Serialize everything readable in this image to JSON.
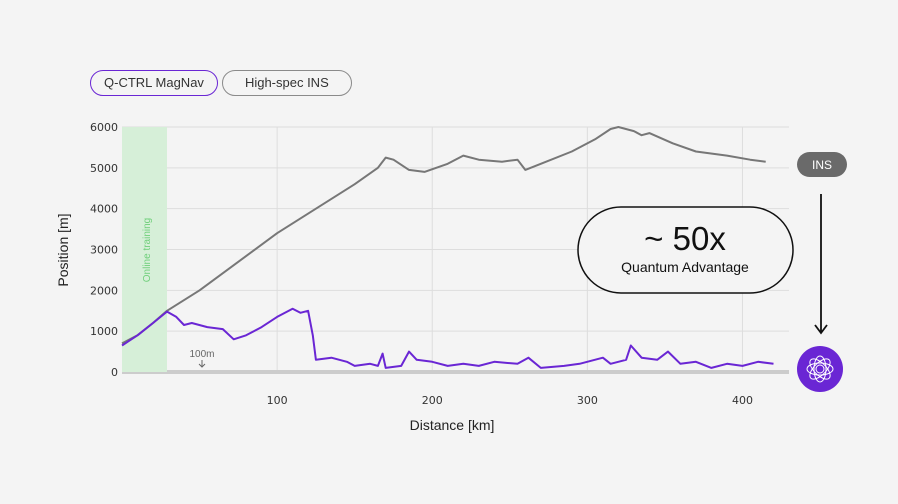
{
  "legend": {
    "items": [
      {
        "label": "Q-CTRL MagNav",
        "active": true
      },
      {
        "label": "High-spec INS",
        "active": false
      }
    ]
  },
  "colors": {
    "magnav": "#6a26d4",
    "ins": "#777777",
    "training_band": "#d6efd8",
    "training_text": "#6fcf7a",
    "ins_tag_bg": "#6a6a6a",
    "grid": "#dddddd",
    "baseline": "#cccccc"
  },
  "annotations": {
    "online_training": "Online training",
    "hundred_m": "100m",
    "advantage_value": "~ 50x",
    "advantage_label": "Quantum Advantage",
    "ins_tag": "INS"
  },
  "chart_data": {
    "type": "line",
    "xlabel": "Distance [km]",
    "ylabel": "Position [m]",
    "xlim": [
      0,
      430
    ],
    "ylim": [
      0,
      6000
    ],
    "xticks": [
      100,
      200,
      300,
      400
    ],
    "yticks": [
      0,
      1000,
      2000,
      3000,
      4000,
      5000,
      6000
    ],
    "grid": true,
    "online_training_range": [
      0,
      29
    ],
    "series": [
      {
        "name": "High-spec INS",
        "points": [
          [
            0,
            700
          ],
          [
            10,
            900
          ],
          [
            20,
            1200
          ],
          [
            29,
            1500
          ],
          [
            50,
            2000
          ],
          [
            75,
            2700
          ],
          [
            100,
            3400
          ],
          [
            125,
            4000
          ],
          [
            150,
            4600
          ],
          [
            165,
            5000
          ],
          [
            170,
            5250
          ],
          [
            175,
            5200
          ],
          [
            185,
            4950
          ],
          [
            195,
            4900
          ],
          [
            210,
            5100
          ],
          [
            220,
            5300
          ],
          [
            230,
            5200
          ],
          [
            245,
            5150
          ],
          [
            255,
            5200
          ],
          [
            260,
            4950
          ],
          [
            270,
            5100
          ],
          [
            290,
            5400
          ],
          [
            305,
            5700
          ],
          [
            315,
            5950
          ],
          [
            320,
            6000
          ],
          [
            330,
            5900
          ],
          [
            335,
            5800
          ],
          [
            340,
            5850
          ],
          [
            355,
            5600
          ],
          [
            370,
            5400
          ],
          [
            390,
            5300
          ],
          [
            405,
            5200
          ],
          [
            415,
            5150
          ]
        ]
      },
      {
        "name": "Q-CTRL MagNav",
        "points": [
          [
            0,
            650
          ],
          [
            10,
            900
          ],
          [
            20,
            1200
          ],
          [
            29,
            1480
          ],
          [
            35,
            1350
          ],
          [
            40,
            1150
          ],
          [
            45,
            1200
          ],
          [
            55,
            1100
          ],
          [
            65,
            1050
          ],
          [
            72,
            800
          ],
          [
            80,
            900
          ],
          [
            90,
            1100
          ],
          [
            100,
            1350
          ],
          [
            110,
            1550
          ],
          [
            115,
            1450
          ],
          [
            120,
            1500
          ],
          [
            123,
            900
          ],
          [
            125,
            300
          ],
          [
            135,
            350
          ],
          [
            145,
            250
          ],
          [
            150,
            150
          ],
          [
            160,
            200
          ],
          [
            165,
            150
          ],
          [
            168,
            450
          ],
          [
            170,
            100
          ],
          [
            180,
            150
          ],
          [
            185,
            500
          ],
          [
            190,
            300
          ],
          [
            200,
            250
          ],
          [
            210,
            150
          ],
          [
            220,
            200
          ],
          [
            230,
            150
          ],
          [
            240,
            250
          ],
          [
            255,
            200
          ],
          [
            262,
            350
          ],
          [
            270,
            100
          ],
          [
            285,
            150
          ],
          [
            295,
            200
          ],
          [
            310,
            350
          ],
          [
            315,
            200
          ],
          [
            325,
            300
          ],
          [
            328,
            650
          ],
          [
            335,
            350
          ],
          [
            345,
            300
          ],
          [
            352,
            500
          ],
          [
            360,
            200
          ],
          [
            370,
            250
          ],
          [
            380,
            100
          ],
          [
            390,
            200
          ],
          [
            400,
            150
          ],
          [
            410,
            250
          ],
          [
            420,
            200
          ]
        ]
      }
    ]
  }
}
